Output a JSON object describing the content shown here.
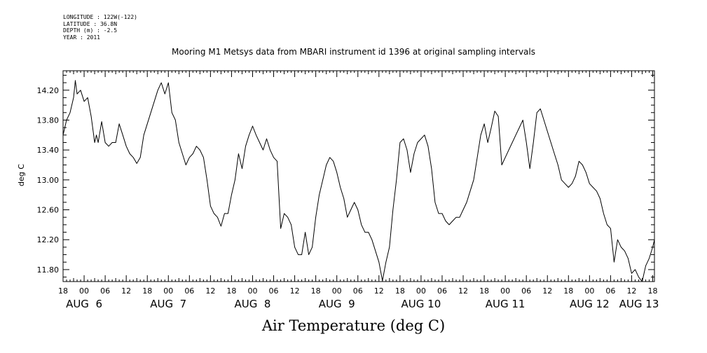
{
  "header": {
    "meta_lines": [
      "LONGITUDE : 122W(-122)",
      "LATITUDE : 36.8N",
      "DEPTH (m) : -2.5",
      "YEAR : 2011"
    ],
    "title": "Mooring M1 Metsys data from MBARI instrument id 1396 at original sampling intervals"
  },
  "chart_data": {
    "type": "line",
    "title": "Mooring M1 Metsys data from MBARI instrument id 1396 at original sampling intervals",
    "xlabel": "Air Temperature (deg C)",
    "ylabel": "deg C",
    "xunit": "hours since Aug 5 2011 18:00",
    "xlim": [
      0,
      168.5
    ],
    "ylim": [
      11.64,
      14.46
    ],
    "yticks": [
      11.8,
      12.2,
      12.6,
      13.0,
      13.4,
      13.8,
      14.2
    ],
    "ytick_labels": [
      "11.80",
      "12.20",
      "12.60",
      "13.00",
      "13.40",
      "13.80",
      "14.20"
    ],
    "xtick_hour_labels": [
      "18",
      "00",
      "06",
      "12",
      "18",
      "00",
      "06",
      "12",
      "18",
      "00",
      "06",
      "12",
      "18",
      "00",
      "06",
      "12",
      "18",
      "00",
      "06",
      "12",
      "18",
      "00",
      "06",
      "12",
      "18",
      "00",
      "06",
      "12",
      "18"
    ],
    "date_labels": [
      {
        "text": "AUG  6",
        "hour": 6
      },
      {
        "text": "AUG  7",
        "hour": 30
      },
      {
        "text": "AUG  8",
        "hour": 54
      },
      {
        "text": "AUG  9",
        "hour": 78
      },
      {
        "text": "AUG 10",
        "hour": 102
      },
      {
        "text": "AUG 11",
        "hour": 126
      },
      {
        "text": "AUG 12",
        "hour": 150
      },
      {
        "text": "AUG 13",
        "hour": 174
      }
    ],
    "series": [
      {
        "x": [
          0,
          1,
          2,
          3,
          3.5,
          4,
          5,
          6,
          7,
          8,
          9,
          9.5,
          10,
          11,
          12,
          13,
          14,
          15,
          16,
          17,
          18,
          19,
          20,
          21,
          22,
          23,
          24,
          25,
          26,
          27,
          28,
          29,
          30,
          31,
          32,
          33,
          34,
          35,
          36,
          37,
          38,
          39,
          40,
          41,
          42,
          43,
          44,
          45,
          46,
          47,
          48,
          49,
          50,
          51,
          52,
          53,
          54,
          55,
          56,
          57,
          58,
          59,
          60,
          61,
          62,
          63,
          64,
          65,
          66,
          67,
          68,
          69,
          70,
          71,
          72,
          73,
          74,
          75,
          76,
          77,
          78,
          79,
          80,
          81,
          82,
          83,
          84,
          85,
          86,
          87,
          88,
          89,
          90,
          91,
          92,
          93,
          94,
          95,
          96,
          97,
          98,
          99,
          100,
          101,
          102,
          103,
          104,
          105,
          106,
          107,
          108,
          109,
          110,
          111,
          112,
          113,
          114,
          115,
          116,
          117,
          118,
          119,
          120,
          121,
          122,
          123,
          124,
          125,
          126,
          127,
          128,
          129,
          130,
          131,
          132,
          133,
          134,
          135,
          136,
          137,
          138,
          139,
          140,
          141,
          142,
          143,
          144,
          145,
          146,
          147,
          148,
          149,
          150,
          151,
          152,
          153,
          154,
          155,
          156,
          157,
          158,
          159,
          160,
          161,
          162,
          163,
          164,
          165,
          166,
          167,
          168,
          168.5
        ],
        "y": [
          13.6,
          13.8,
          13.9,
          14.1,
          14.33,
          14.15,
          14.2,
          14.05,
          14.1,
          13.85,
          13.5,
          13.6,
          13.5,
          13.78,
          13.5,
          13.45,
          13.5,
          13.5,
          13.75,
          13.6,
          13.45,
          13.35,
          13.3,
          13.22,
          13.3,
          13.6,
          13.75,
          13.9,
          14.05,
          14.2,
          14.3,
          14.15,
          14.3,
          13.9,
          13.8,
          13.5,
          13.35,
          13.2,
          13.3,
          13.35,
          13.45,
          13.4,
          13.3,
          13.0,
          12.65,
          12.55,
          12.5,
          12.38,
          12.55,
          12.55,
          12.8,
          13.0,
          13.35,
          13.15,
          13.45,
          13.6,
          13.72,
          13.6,
          13.5,
          13.4,
          13.55,
          13.4,
          13.3,
          13.25,
          12.35,
          12.55,
          12.5,
          12.4,
          12.1,
          12.0,
          12.0,
          12.3,
          12.0,
          12.1,
          12.5,
          12.8,
          13.0,
          13.2,
          13.3,
          13.25,
          13.1,
          12.9,
          12.75,
          12.5,
          12.6,
          12.7,
          12.6,
          12.4,
          12.3,
          12.3,
          12.2,
          12.05,
          11.9,
          11.65,
          11.9,
          12.1,
          12.6,
          13.0,
          13.5,
          13.55,
          13.4,
          13.1,
          13.35,
          13.5,
          13.55,
          13.6,
          13.45,
          13.15,
          12.7,
          12.55,
          12.55,
          12.45,
          12.4,
          12.45,
          12.5,
          12.5,
          12.6,
          12.7,
          12.85,
          13.0,
          13.3,
          13.6,
          13.75,
          13.5,
          13.7,
          13.92,
          13.85,
          13.2,
          13.3,
          13.4,
          13.5,
          13.6,
          13.7,
          13.8,
          13.5,
          13.15,
          13.5,
          13.9,
          13.95,
          13.8,
          13.65,
          13.5,
          13.35,
          13.2,
          13.0,
          12.95,
          12.9,
          12.95,
          13.05,
          13.25,
          13.2,
          13.1,
          12.95,
          12.9,
          12.85,
          12.75,
          12.55,
          12.4,
          12.35,
          11.9,
          12.2,
          12.1,
          12.05,
          11.95,
          11.75,
          11.8,
          11.7,
          11.64,
          11.85,
          11.95,
          12.1,
          12.2
        ]
      }
    ],
    "grid": false,
    "legend": "none"
  }
}
